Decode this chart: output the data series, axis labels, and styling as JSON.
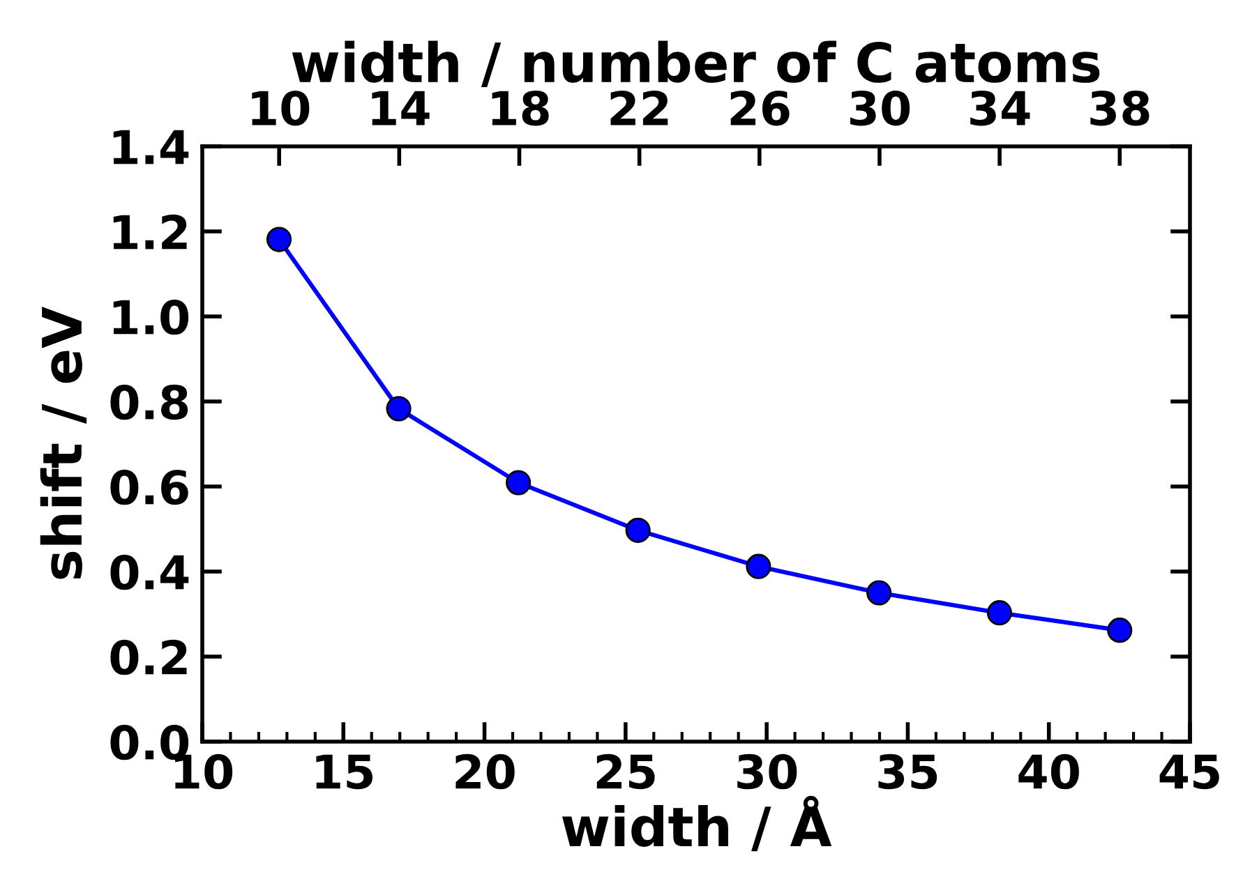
{
  "chart_data": {
    "type": "line",
    "xlabel": "width / Å",
    "ylabel": "shift / eV",
    "x2label": "width / number of C atoms",
    "x": [
      12.72,
      16.96,
      21.2,
      25.44,
      29.71,
      33.98,
      38.25,
      42.51
    ],
    "series": [
      {
        "color": "#0000ff",
        "values": [
          1.181,
          0.783,
          0.609,
          0.497,
          0.412,
          0.35,
          0.303,
          0.262
        ]
      }
    ],
    "xlim": [
      10,
      45
    ],
    "xticks": [
      10,
      15,
      20,
      25,
      30,
      35,
      40,
      45
    ],
    "ylim": [
      0.0,
      1.4
    ],
    "yticks": [
      {
        "value": 0.0,
        "label": "0.0"
      },
      {
        "value": 0.2,
        "label": "0.2"
      },
      {
        "value": 0.4,
        "label": "0.4"
      },
      {
        "value": 0.6,
        "label": "0.6"
      },
      {
        "value": 0.8,
        "label": "0.8"
      },
      {
        "value": 1.0,
        "label": "1.0"
      },
      {
        "value": 1.2,
        "label": "1.2"
      },
      {
        "value": 1.4,
        "label": "1.4"
      }
    ],
    "x2lim": [
      7.44,
      40.34
    ],
    "x2ticks": [
      10,
      14,
      18,
      22,
      26,
      30,
      34,
      38
    ],
    "marker": "circle",
    "line_style": "solid",
    "grid": false,
    "legend": false
  }
}
